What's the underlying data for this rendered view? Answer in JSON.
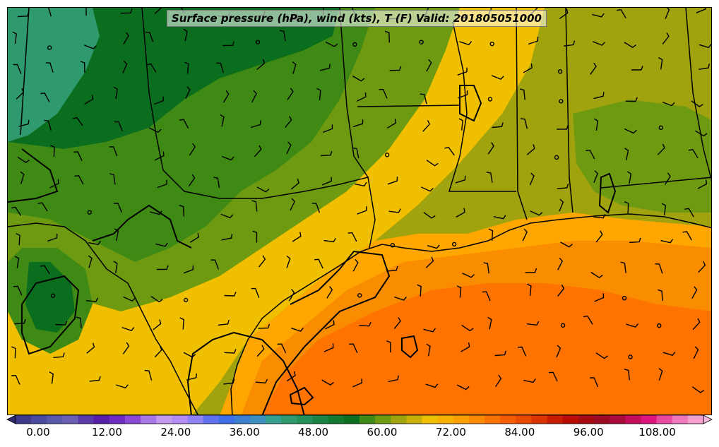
{
  "title": "Surface pressure (hPa), wind (kts), T (F) Valid: 201805051000",
  "colorbar": {
    "ticks": [
      "0.00",
      "12.00",
      "24.00",
      "36.00",
      "48.00",
      "60.00",
      "72.00",
      "84.00",
      "96.00",
      "108.00"
    ],
    "colors": [
      "#3d3a8a",
      "#4b4a9e",
      "#5a58aa",
      "#6a5fb5",
      "#5a3aa8",
      "#5520a5",
      "#6e2bc0",
      "#8a4ad6",
      "#a675e6",
      "#c39af0",
      "#b38bf2",
      "#8f82f5",
      "#5e72f0",
      "#3f6fe6",
      "#3c7fd2",
      "#3a8fbe",
      "#35a08f",
      "#2e9a6e",
      "#23905a",
      "#1c8442",
      "#127a2e",
      "#0a6e1e",
      "#3f8a14",
      "#6e9a12",
      "#a0a20e",
      "#c8b00a",
      "#f0c000",
      "#f7b000",
      "#faa000",
      "#fb8a00",
      "#f97300",
      "#f45c00",
      "#e84a00",
      "#d93400",
      "#c81c00",
      "#b80c00",
      "#a50a10",
      "#9a0a20",
      "#a80a3a",
      "#c40e5a",
      "#dc1480",
      "#e84aa0",
      "#f077bc",
      "#f6a0d0"
    ],
    "extend_low": "#2e2a6e",
    "extend_high": "#f9b6de"
  },
  "map": {
    "variable": "T (F)",
    "water_colors": [
      "#ff7300",
      "#fa8c00",
      "#ffa600"
    ],
    "land_colors": [
      "#0a6e1e",
      "#3f8a14",
      "#2e9a6e",
      "#6e9a12",
      "#a0a20e",
      "#f0c000"
    ]
  }
}
